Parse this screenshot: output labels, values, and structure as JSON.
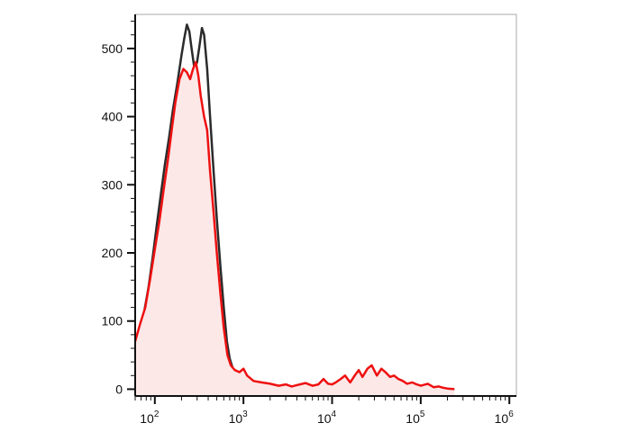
{
  "chart_data": {
    "type": "area",
    "title": "",
    "xlabel": "",
    "ylabel": "",
    "x_scale": "log",
    "xlim": [
      60,
      1200000
    ],
    "ylim": [
      -10,
      550
    ],
    "grid": false,
    "legend": "none",
    "x_tick_labels": [
      {
        "value": 100,
        "base": "10",
        "exp": "2"
      },
      {
        "value": 1000,
        "base": "10",
        "exp": "3"
      },
      {
        "value": 10000,
        "base": "10",
        "exp": "4"
      },
      {
        "value": 100000,
        "base": "10",
        "exp": "5"
      },
      {
        "value": 1000000,
        "base": "10",
        "exp": "6"
      }
    ],
    "y_tick_labels": [
      {
        "value": 0,
        "label": "0"
      },
      {
        "value": 100,
        "label": "100"
      },
      {
        "value": 200,
        "label": "200"
      },
      {
        "value": 300,
        "label": "300"
      },
      {
        "value": 400,
        "label": "400"
      },
      {
        "value": 500,
        "label": "500"
      }
    ],
    "series": [
      {
        "color": "#2b2b2b",
        "fill": "none",
        "points": [
          [
            60,
            60
          ],
          [
            68,
            80
          ],
          [
            75,
            110
          ],
          [
            85,
            150
          ],
          [
            95,
            195
          ],
          [
            105,
            240
          ],
          [
            118,
            290
          ],
          [
            130,
            330
          ],
          [
            145,
            370
          ],
          [
            160,
            410
          ],
          [
            180,
            450
          ],
          [
            200,
            490
          ],
          [
            215,
            515
          ],
          [
            230,
            535
          ],
          [
            245,
            525
          ],
          [
            260,
            500
          ],
          [
            280,
            470
          ],
          [
            300,
            480
          ],
          [
            320,
            505
          ],
          [
            340,
            530
          ],
          [
            360,
            520
          ],
          [
            390,
            470
          ],
          [
            420,
            400
          ],
          [
            460,
            320
          ],
          [
            500,
            250
          ],
          [
            550,
            180
          ],
          [
            600,
            120
          ],
          [
            650,
            70
          ],
          [
            700,
            45
          ],
          [
            760,
            30
          ],
          [
            820,
            20
          ],
          [
            900,
            10
          ],
          [
            1000,
            5
          ],
          [
            1150,
            2
          ],
          [
            1400,
            1
          ],
          [
            1800,
            0
          ]
        ]
      },
      {
        "color": "#ee1111",
        "fill": "#fde8e8",
        "points": [
          [
            60,
            70
          ],
          [
            68,
            95
          ],
          [
            78,
            120
          ],
          [
            88,
            160
          ],
          [
            100,
            205
          ],
          [
            112,
            245
          ],
          [
            125,
            290
          ],
          [
            140,
            335
          ],
          [
            155,
            380
          ],
          [
            170,
            420
          ],
          [
            190,
            455
          ],
          [
            210,
            470
          ],
          [
            230,
            465
          ],
          [
            250,
            455
          ],
          [
            270,
            470
          ],
          [
            290,
            480
          ],
          [
            310,
            460
          ],
          [
            330,
            430
          ],
          [
            360,
            400
          ],
          [
            390,
            380
          ],
          [
            420,
            320
          ],
          [
            460,
            260
          ],
          [
            500,
            200
          ],
          [
            550,
            140
          ],
          [
            600,
            90
          ],
          [
            660,
            50
          ],
          [
            720,
            35
          ],
          [
            800,
            28
          ],
          [
            900,
            25
          ],
          [
            1000,
            30
          ],
          [
            1100,
            20
          ],
          [
            1300,
            12
          ],
          [
            1600,
            10
          ],
          [
            2000,
            8
          ],
          [
            2500,
            5
          ],
          [
            3000,
            7
          ],
          [
            3500,
            4
          ],
          [
            4000,
            6
          ],
          [
            5000,
            9
          ],
          [
            6000,
            5
          ],
          [
            7000,
            7
          ],
          [
            8000,
            15
          ],
          [
            9000,
            8
          ],
          [
            10000,
            7
          ],
          [
            11000,
            10
          ],
          [
            12500,
            15
          ],
          [
            14000,
            20
          ],
          [
            16000,
            10
          ],
          [
            18000,
            20
          ],
          [
            20000,
            28
          ],
          [
            22000,
            18
          ],
          [
            25000,
            30
          ],
          [
            28000,
            35
          ],
          [
            32000,
            20
          ],
          [
            36000,
            30
          ],
          [
            40000,
            25
          ],
          [
            45000,
            18
          ],
          [
            50000,
            20
          ],
          [
            56000,
            15
          ],
          [
            63000,
            12
          ],
          [
            70000,
            8
          ],
          [
            80000,
            10
          ],
          [
            90000,
            7
          ],
          [
            100000,
            5
          ],
          [
            120000,
            8
          ],
          [
            140000,
            3
          ],
          [
            160000,
            4
          ],
          [
            180000,
            2
          ],
          [
            200000,
            1
          ],
          [
            240000,
            0
          ]
        ]
      }
    ]
  }
}
